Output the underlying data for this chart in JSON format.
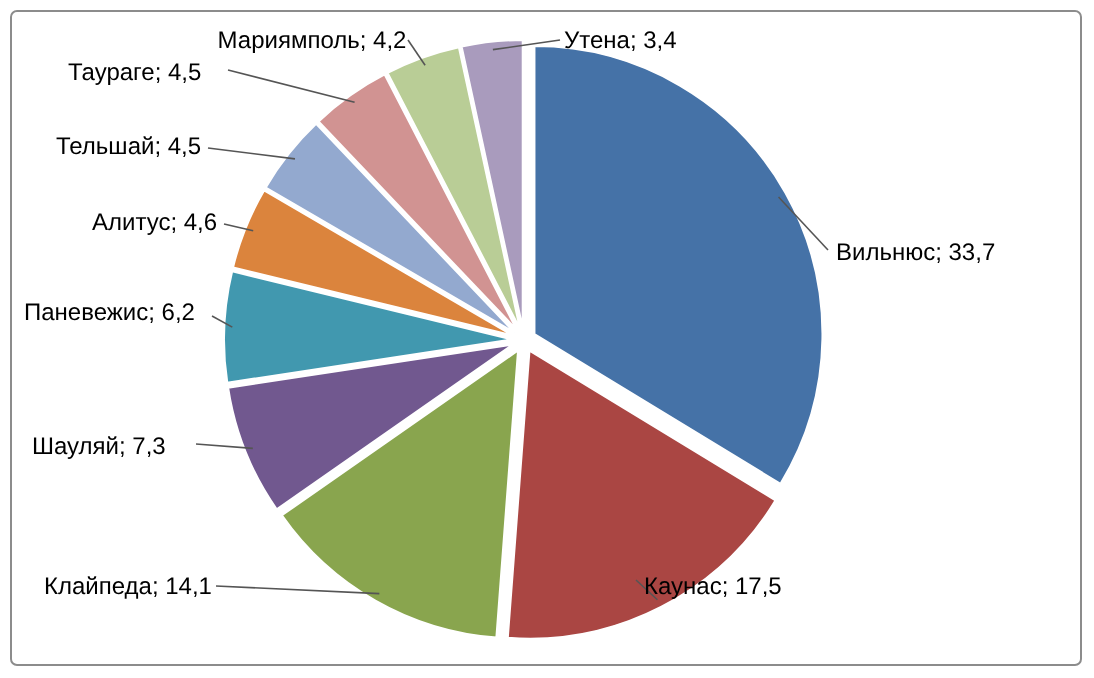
{
  "chart_data": {
    "type": "pie",
    "categories": [
      "Вильнюс",
      "Каунас",
      "Клайпеда",
      "Шауляй",
      "Паневежис",
      "Алитус",
      "Тельшай",
      "Таураге",
      "Мариямполь",
      "Утена"
    ],
    "values": [
      33.7,
      17.5,
      14.1,
      7.3,
      6.2,
      4.6,
      4.5,
      4.5,
      4.2,
      3.4
    ],
    "value_labels": [
      "33,7",
      "17,5",
      "14,1",
      "7,3",
      "6,2",
      "4,6",
      "4,5",
      "4,5",
      "4,2",
      "3,4"
    ],
    "colors": [
      "#4572a7",
      "#aa4643",
      "#89a54e",
      "#71588f",
      "#4198af",
      "#db843d",
      "#93a9cf",
      "#d19392",
      "#b9cd96",
      "#a99bbd"
    ]
  }
}
